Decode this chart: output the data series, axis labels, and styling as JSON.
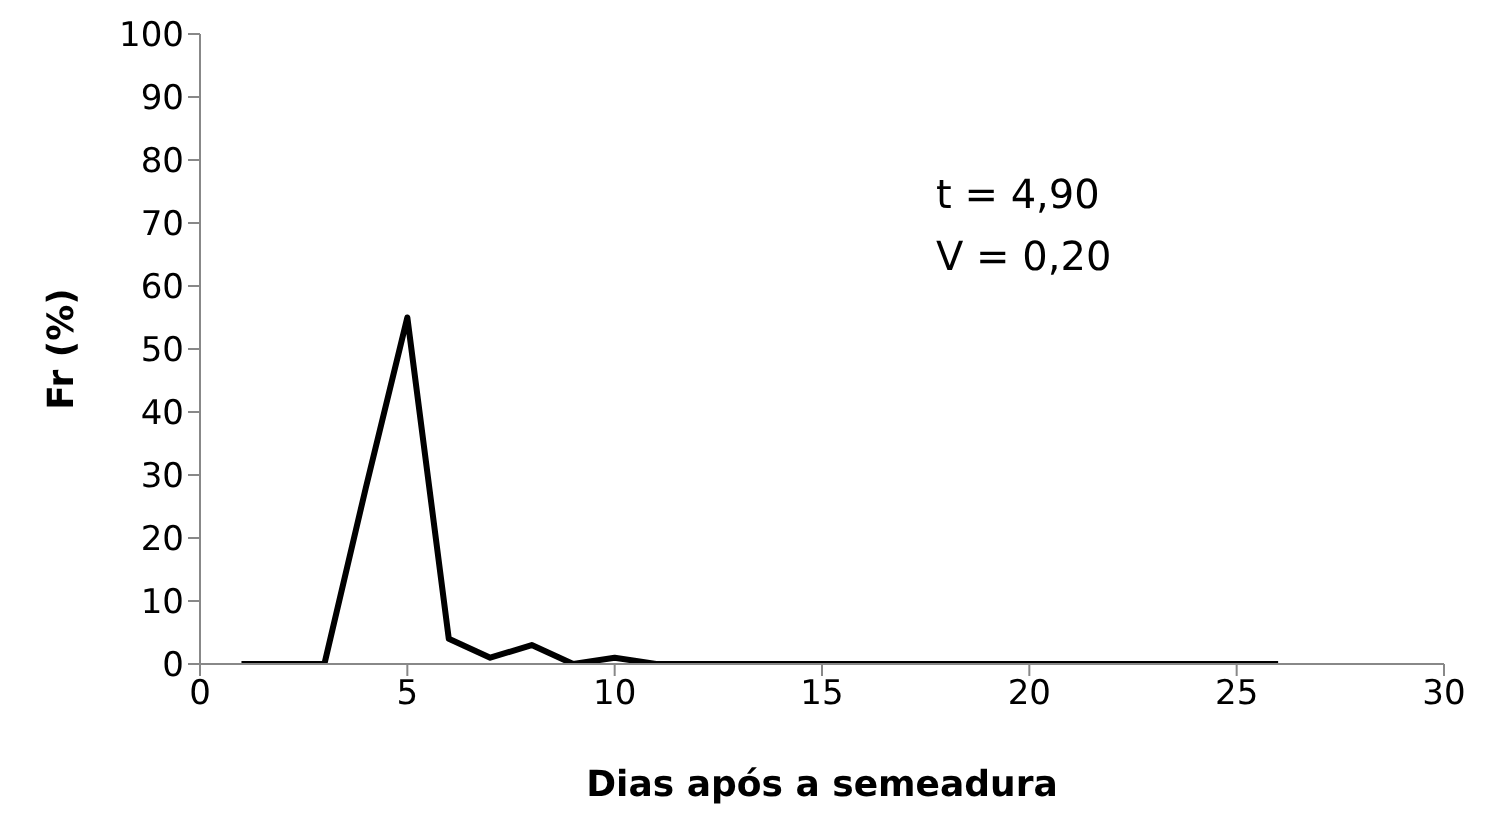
{
  "chart_data": {
    "type": "line",
    "xlabel": "Dias após a semeadura",
    "ylabel": "Fr (%)",
    "annotations": [
      "t = 4,90",
      "V = 0,20"
    ],
    "x": [
      1,
      2,
      3,
      4,
      5,
      6,
      7,
      8,
      9,
      10,
      11,
      12,
      13,
      14,
      15,
      16,
      17,
      18,
      19,
      20,
      21,
      22,
      23,
      24,
      25,
      26
    ],
    "series": [
      {
        "color": "#000000",
        "values": [
          0,
          0,
          0,
          28,
          55,
          4,
          1,
          3,
          0,
          1,
          0,
          0,
          0,
          0,
          0,
          0,
          0,
          0,
          0,
          0,
          0,
          0,
          0,
          0,
          0,
          0
        ]
      }
    ],
    "xlim": [
      0,
      30
    ],
    "xticks": [
      0,
      5,
      10,
      15,
      20,
      25,
      30
    ],
    "ylim": [
      0,
      100
    ],
    "yticks": [
      0,
      10,
      20,
      30,
      40,
      50,
      60,
      70,
      80,
      90,
      100
    ],
    "grid": false,
    "legend": false,
    "marker": "none",
    "line_style": "solid"
  }
}
